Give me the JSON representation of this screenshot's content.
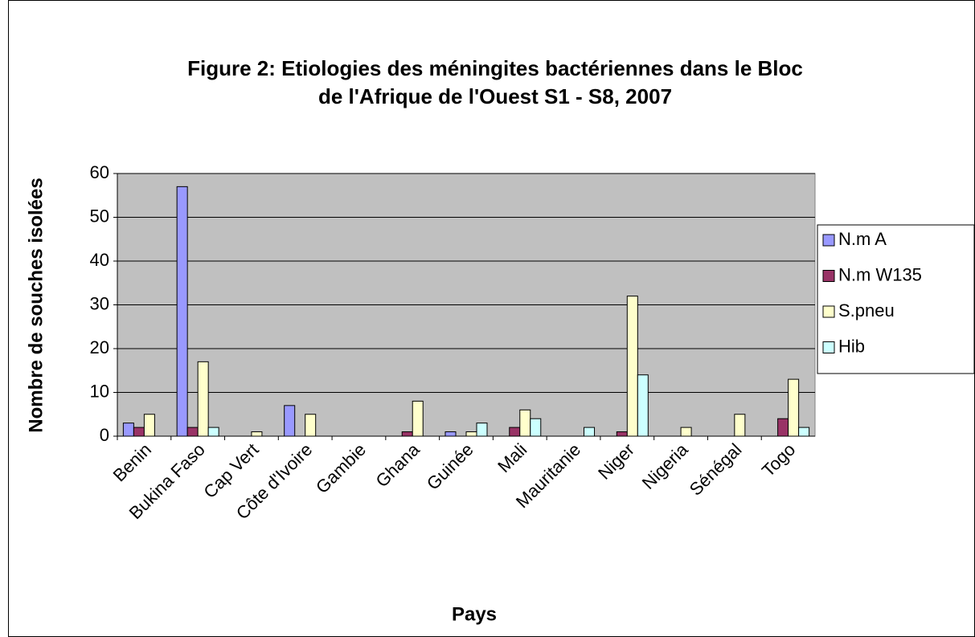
{
  "chart_data": {
    "type": "bar",
    "title": [
      "Figure 2: Etiologies des méningites bactériennes dans le Bloc",
      "de l'Afrique de l'Ouest S1 - S8, 2007"
    ],
    "x_label": "Pays",
    "y_label": "Nombre de souches isolées",
    "categories": [
      "Benin",
      "Bukina Faso",
      "Cap Vert",
      "Côte d'Ivoire",
      "Gambie",
      "Ghana",
      "Guinée",
      "Mali",
      "Mauritanie",
      "Niger",
      "Nigeria",
      "Sénégal",
      "Togo"
    ],
    "series": [
      {
        "name": "N.m A",
        "color": "#9999ff",
        "values": [
          3,
          57,
          0,
          7,
          0,
          0,
          1,
          0,
          0,
          0,
          0,
          0,
          0
        ]
      },
      {
        "name": "N.m W135",
        "color": "#993366",
        "values": [
          2,
          2,
          0,
          0,
          0,
          1,
          0,
          2,
          0,
          1,
          0,
          0,
          4
        ]
      },
      {
        "name": "S.pneu",
        "color": "#ffffcc",
        "values": [
          5,
          17,
          1,
          5,
          0,
          8,
          1,
          6,
          0,
          32,
          2,
          5,
          13
        ]
      },
      {
        "name": "Hib",
        "color": "#ccffff",
        "values": [
          0,
          2,
          0,
          0,
          0,
          0,
          3,
          4,
          2,
          14,
          0,
          0,
          2
        ]
      }
    ],
    "ylim": [
      0,
      60
    ],
    "yticks": [
      0,
      10,
      20,
      30,
      40,
      50,
      60
    ],
    "grid": true,
    "legend": "right"
  }
}
